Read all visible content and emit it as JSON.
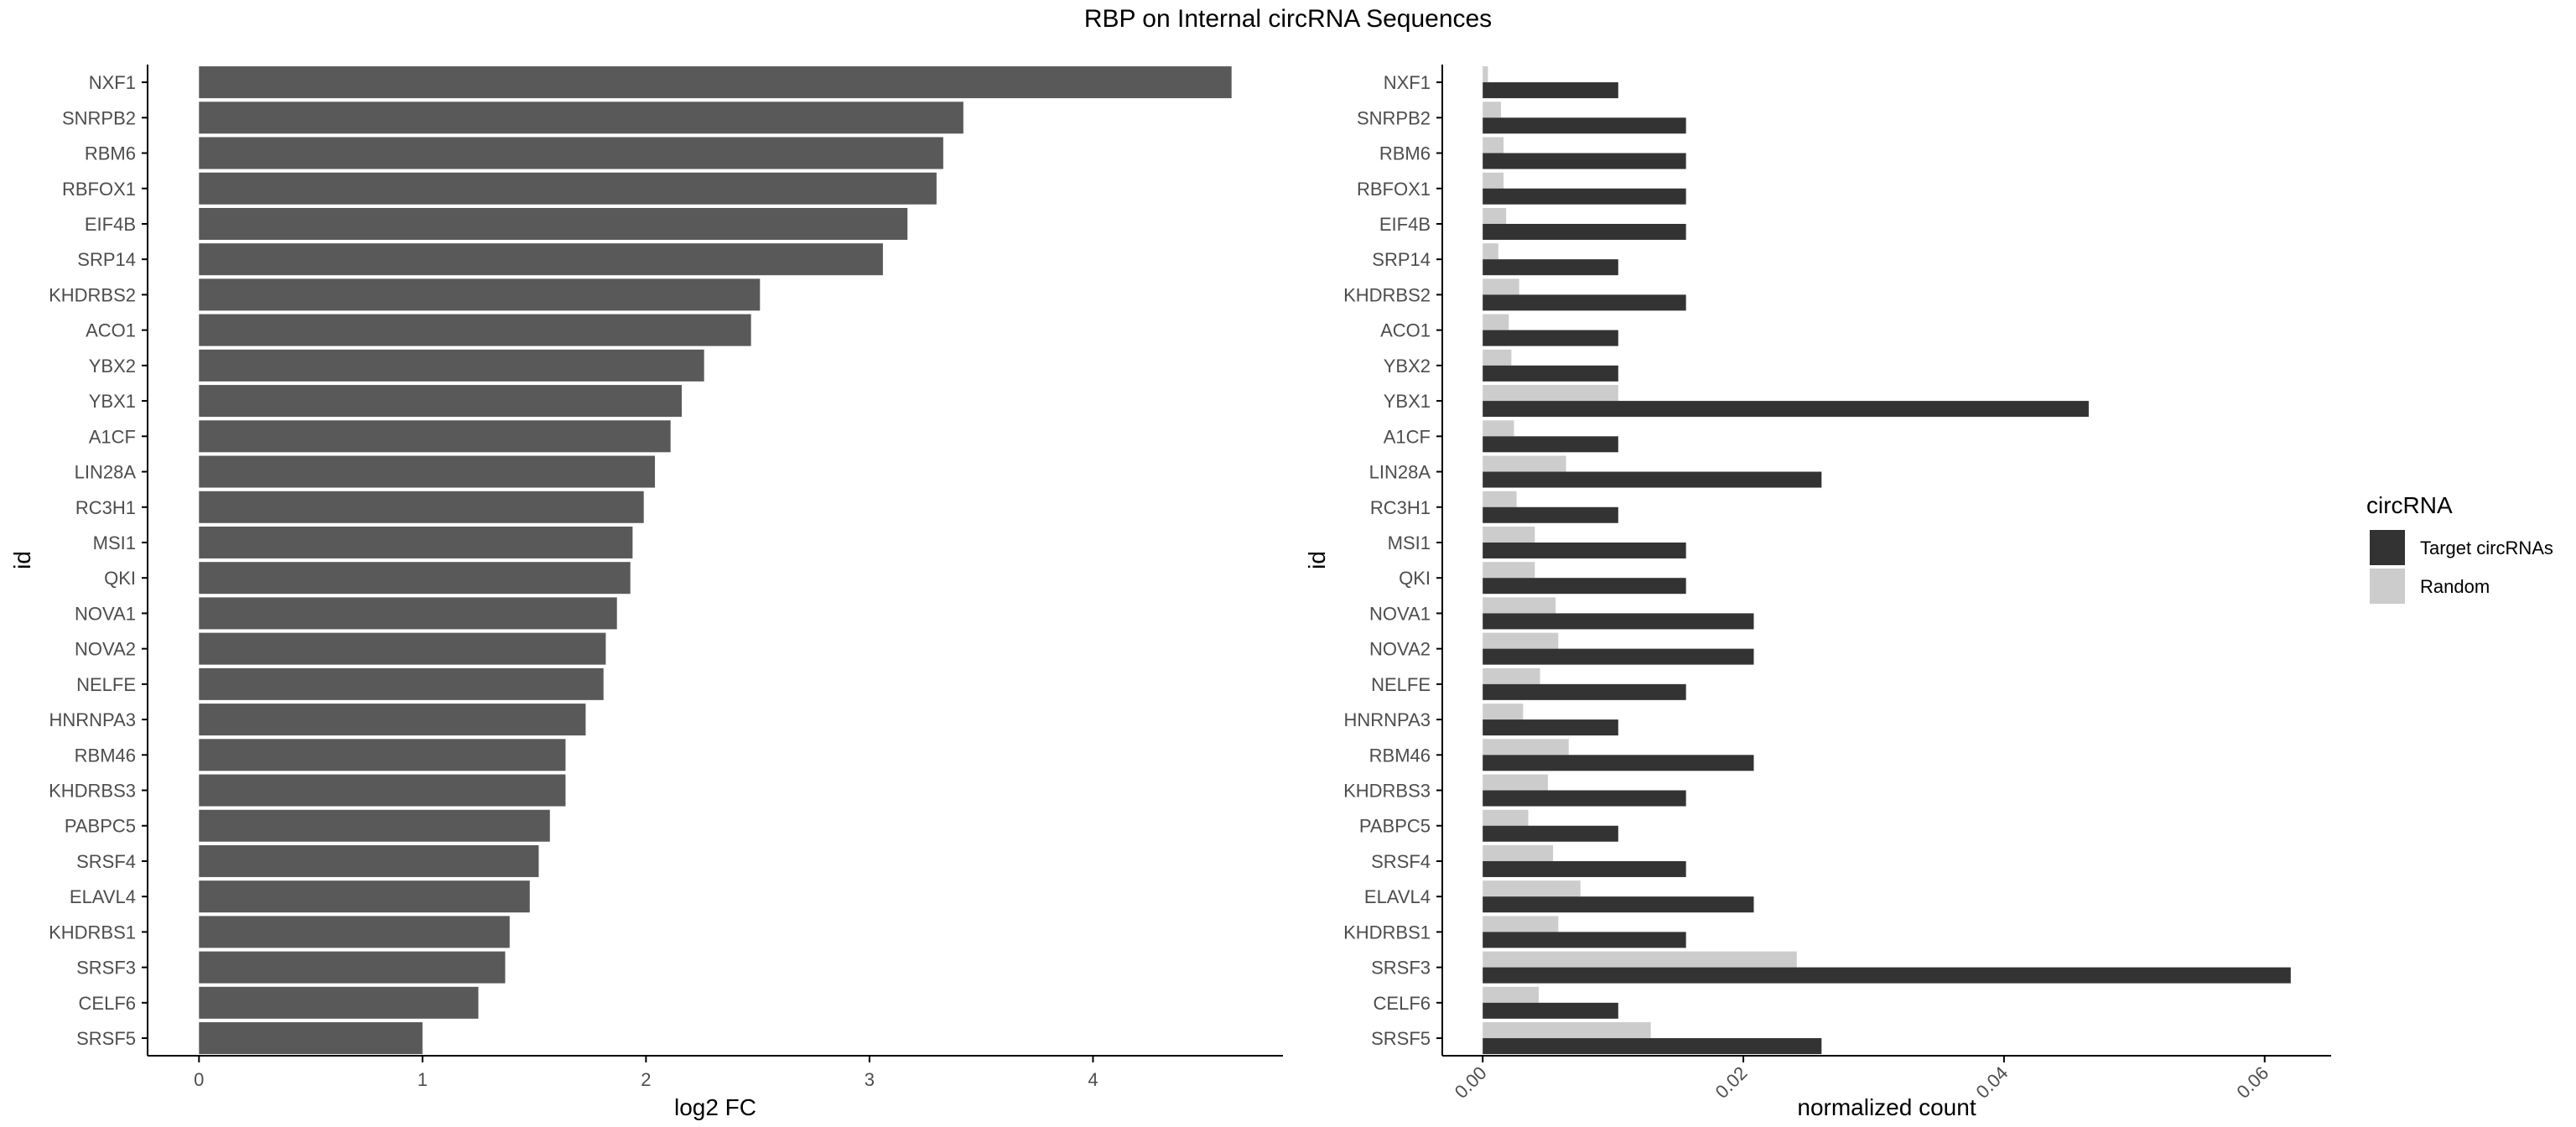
{
  "title": "RBP on Internal circRNA Sequences",
  "colors": {
    "bar_left": "#595959",
    "target": "#333333",
    "random": "#cccccc",
    "axis": "#000000",
    "tick_text": "#4d4d4d"
  },
  "chart_data": [
    {
      "type": "bar",
      "orientation": "horizontal",
      "categories": [
        "NXF1",
        "SNRPB2",
        "RBM6",
        "RBFOX1",
        "EIF4B",
        "SRP14",
        "KHDRBS2",
        "ACO1",
        "YBX2",
        "YBX1",
        "A1CF",
        "LIN28A",
        "RC3H1",
        "MSI1",
        "QKI",
        "NOVA1",
        "NOVA2",
        "NELFE",
        "HNRNPA3",
        "RBM46",
        "KHDRBS3",
        "PABPC5",
        "SRSF4",
        "ELAVL4",
        "KHDRBS1",
        "SRSF3",
        "CELF6",
        "SRSF5"
      ],
      "values": [
        4.62,
        3.42,
        3.33,
        3.3,
        3.17,
        3.06,
        2.51,
        2.47,
        2.26,
        2.16,
        2.11,
        2.04,
        1.99,
        1.94,
        1.93,
        1.87,
        1.82,
        1.81,
        1.73,
        1.64,
        1.64,
        1.57,
        1.52,
        1.48,
        1.39,
        1.37,
        1.25,
        1.0
      ],
      "xlabel": "log2 FC",
      "ylabel": "id",
      "xlim": [
        -0.23,
        4.85
      ],
      "xticks": [
        0,
        1,
        2,
        3,
        4
      ],
      "xtick_labels": [
        "0",
        "1",
        "2",
        "3",
        "4"
      ],
      "grid": false
    },
    {
      "type": "bar",
      "orientation": "horizontal",
      "grouped": true,
      "categories": [
        "NXF1",
        "SNRPB2",
        "RBM6",
        "RBFOX1",
        "EIF4B",
        "SRP14",
        "KHDRBS2",
        "ACO1",
        "YBX2",
        "YBX1",
        "A1CF",
        "LIN28A",
        "RC3H1",
        "MSI1",
        "QKI",
        "NOVA1",
        "NOVA2",
        "NELFE",
        "HNRNPA3",
        "RBM46",
        "KHDRBS3",
        "PABPC5",
        "SRSF4",
        "ELAVL4",
        "KHDRBS1",
        "SRSF3",
        "CELF6",
        "SRSF5"
      ],
      "series": [
        {
          "name": "Target circRNAs",
          "values": [
            0.0104,
            0.0156,
            0.0156,
            0.0156,
            0.0156,
            0.0104,
            0.0156,
            0.0104,
            0.0104,
            0.0465,
            0.0104,
            0.026,
            0.0104,
            0.0156,
            0.0156,
            0.0208,
            0.0208,
            0.0156,
            0.0104,
            0.0208,
            0.0156,
            0.0104,
            0.0156,
            0.0208,
            0.0156,
            0.062,
            0.0104,
            0.026
          ]
        },
        {
          "name": "Random",
          "values": [
            0.0004,
            0.0014,
            0.0016,
            0.0016,
            0.0018,
            0.0012,
            0.0028,
            0.002,
            0.0022,
            0.0104,
            0.0024,
            0.0064,
            0.0026,
            0.004,
            0.004,
            0.0056,
            0.0058,
            0.0044,
            0.0031,
            0.0066,
            0.005,
            0.0035,
            0.0054,
            0.0075,
            0.0058,
            0.0241,
            0.0043,
            0.0129
          ]
        }
      ],
      "xlabel": "normalized count",
      "ylabel": "id",
      "xlim": [
        -0.0031,
        0.0651
      ],
      "xticks": [
        0.0,
        0.02,
        0.04,
        0.06
      ],
      "xtick_labels": [
        "0.00",
        "0.02",
        "0.04",
        "0.06"
      ],
      "legend": {
        "title": "circRNA",
        "position": "right"
      },
      "grid": false
    }
  ]
}
